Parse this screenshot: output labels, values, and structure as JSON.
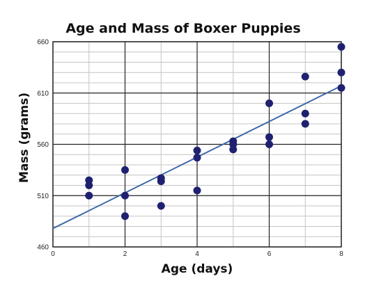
{
  "chart_data": {
    "type": "scatter",
    "title": "Age and Mass of Boxer Puppies",
    "xlabel": "Age (days)",
    "ylabel": "Mass (grams)",
    "xlim": [
      0,
      8
    ],
    "ylim": [
      460,
      660
    ],
    "x_ticks": [
      "0",
      "2",
      "4",
      "6",
      "8"
    ],
    "y_ticks": [
      "460",
      "510",
      "560",
      "610",
      "660"
    ],
    "grid": true,
    "series": [
      {
        "marker_color": "#1f2170",
        "points": [
          {
            "x": 1,
            "y": 525
          },
          {
            "x": 1,
            "y": 520
          },
          {
            "x": 1,
            "y": 510
          },
          {
            "x": 2,
            "y": 535
          },
          {
            "x": 2,
            "y": 510
          },
          {
            "x": 2,
            "y": 490
          },
          {
            "x": 3,
            "y": 527
          },
          {
            "x": 3,
            "y": 524
          },
          {
            "x": 3,
            "y": 500
          },
          {
            "x": 4,
            "y": 554
          },
          {
            "x": 4,
            "y": 547
          },
          {
            "x": 4,
            "y": 515
          },
          {
            "x": 5,
            "y": 563
          },
          {
            "x": 5,
            "y": 560
          },
          {
            "x": 5,
            "y": 555
          },
          {
            "x": 6,
            "y": 600
          },
          {
            "x": 6,
            "y": 567
          },
          {
            "x": 6,
            "y": 560
          },
          {
            "x": 7,
            "y": 626
          },
          {
            "x": 7,
            "y": 590
          },
          {
            "x": 7,
            "y": 580
          },
          {
            "x": 8,
            "y": 655
          },
          {
            "x": 8,
            "y": 630
          },
          {
            "x": 8,
            "y": 615
          }
        ]
      }
    ],
    "trend_line": {
      "color": "#3f6aa8",
      "start": {
        "x": 0,
        "y": 478
      },
      "end": {
        "x": 8,
        "y": 617
      }
    }
  }
}
